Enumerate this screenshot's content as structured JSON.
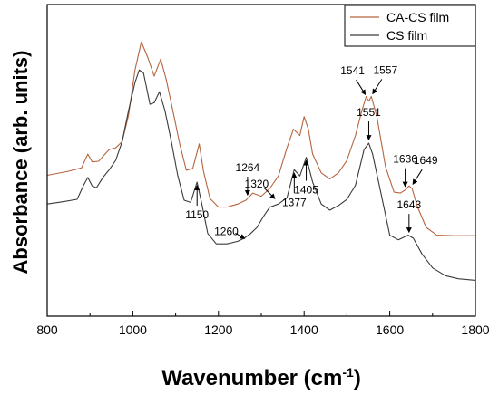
{
  "chart_data": {
    "type": "line",
    "title": "",
    "xlabel": "Wavenumber (cm",
    "xlabel_sup": "-1",
    "xlabel_close": ")",
    "ylabel": "Absorbance (arb. units)",
    "xlim": [
      800,
      1800
    ],
    "ylim": [
      0,
      1
    ],
    "xticks": [
      800,
      1000,
      1200,
      1400,
      1600,
      1800
    ],
    "x_tick_labels": [
      "800",
      "1000",
      "1200",
      "1400",
      "1600",
      "1800"
    ],
    "y_tick_labels_shown": false,
    "grid": false,
    "legend_position": "top-right",
    "series": [
      {
        "name": "CA-CS film",
        "color": "#b5653e",
        "points": [
          [
            800,
            0.452
          ],
          [
            850,
            0.465
          ],
          [
            880,
            0.476
          ],
          [
            895,
            0.52
          ],
          [
            905,
            0.495
          ],
          [
            920,
            0.497
          ],
          [
            945,
            0.535
          ],
          [
            960,
            0.54
          ],
          [
            975,
            0.56
          ],
          [
            990,
            0.645
          ],
          [
            1005,
            0.79
          ],
          [
            1020,
            0.88
          ],
          [
            1035,
            0.83
          ],
          [
            1050,
            0.77
          ],
          [
            1065,
            0.825
          ],
          [
            1078,
            0.76
          ],
          [
            1095,
            0.65
          ],
          [
            1110,
            0.55
          ],
          [
            1125,
            0.468
          ],
          [
            1140,
            0.474
          ],
          [
            1155,
            0.553
          ],
          [
            1165,
            0.465
          ],
          [
            1180,
            0.378
          ],
          [
            1200,
            0.35
          ],
          [
            1220,
            0.35
          ],
          [
            1245,
            0.36
          ],
          [
            1264,
            0.372
          ],
          [
            1280,
            0.395
          ],
          [
            1300,
            0.385
          ],
          [
            1320,
            0.41
          ],
          [
            1340,
            0.45
          ],
          [
            1360,
            0.54
          ],
          [
            1375,
            0.6
          ],
          [
            1390,
            0.58
          ],
          [
            1400,
            0.64
          ],
          [
            1410,
            0.6
          ],
          [
            1420,
            0.52
          ],
          [
            1440,
            0.46
          ],
          [
            1460,
            0.44
          ],
          [
            1480,
            0.46
          ],
          [
            1500,
            0.5
          ],
          [
            1520,
            0.58
          ],
          [
            1535,
            0.66
          ],
          [
            1545,
            0.705
          ],
          [
            1551,
            0.69
          ],
          [
            1557,
            0.705
          ],
          [
            1570,
            0.64
          ],
          [
            1590,
            0.48
          ],
          [
            1610,
            0.398
          ],
          [
            1625,
            0.395
          ],
          [
            1636,
            0.405
          ],
          [
            1645,
            0.418
          ],
          [
            1652,
            0.41
          ],
          [
            1665,
            0.35
          ],
          [
            1685,
            0.285
          ],
          [
            1710,
            0.26
          ],
          [
            1750,
            0.258
          ],
          [
            1800,
            0.258
          ]
        ]
      },
      {
        "name": "CS film",
        "color": "#3a3a3a",
        "points": [
          [
            800,
            0.36
          ],
          [
            840,
            0.368
          ],
          [
            870,
            0.375
          ],
          [
            885,
            0.42
          ],
          [
            895,
            0.445
          ],
          [
            905,
            0.418
          ],
          [
            915,
            0.412
          ],
          [
            930,
            0.445
          ],
          [
            945,
            0.47
          ],
          [
            960,
            0.5
          ],
          [
            975,
            0.56
          ],
          [
            990,
            0.66
          ],
          [
            1005,
            0.75
          ],
          [
            1015,
            0.79
          ],
          [
            1025,
            0.78
          ],
          [
            1040,
            0.68
          ],
          [
            1050,
            0.685
          ],
          [
            1062,
            0.72
          ],
          [
            1075,
            0.66
          ],
          [
            1090,
            0.56
          ],
          [
            1105,
            0.45
          ],
          [
            1120,
            0.372
          ],
          [
            1135,
            0.365
          ],
          [
            1150,
            0.43
          ],
          [
            1160,
            0.368
          ],
          [
            1175,
            0.265
          ],
          [
            1195,
            0.232
          ],
          [
            1220,
            0.232
          ],
          [
            1245,
            0.24
          ],
          [
            1260,
            0.25
          ],
          [
            1275,
            0.265
          ],
          [
            1290,
            0.285
          ],
          [
            1305,
            0.32
          ],
          [
            1320,
            0.35
          ],
          [
            1340,
            0.36
          ],
          [
            1360,
            0.38
          ],
          [
            1377,
            0.47
          ],
          [
            1390,
            0.45
          ],
          [
            1405,
            0.51
          ],
          [
            1420,
            0.43
          ],
          [
            1440,
            0.36
          ],
          [
            1460,
            0.34
          ],
          [
            1480,
            0.355
          ],
          [
            1500,
            0.375
          ],
          [
            1520,
            0.42
          ],
          [
            1540,
            0.535
          ],
          [
            1551,
            0.555
          ],
          [
            1560,
            0.52
          ],
          [
            1580,
            0.39
          ],
          [
            1600,
            0.26
          ],
          [
            1620,
            0.245
          ],
          [
            1643,
            0.26
          ],
          [
            1655,
            0.25
          ],
          [
            1675,
            0.2
          ],
          [
            1700,
            0.155
          ],
          [
            1730,
            0.13
          ],
          [
            1760,
            0.12
          ],
          [
            1800,
            0.115
          ]
        ]
      }
    ],
    "annotations": [
      {
        "label": "1150",
        "series": 1,
        "target_x": 1150,
        "direction": "up"
      },
      {
        "label": "1260",
        "series": 1,
        "target_x": 1265,
        "direction": "diag-left"
      },
      {
        "label": "1264",
        "series": 0,
        "target_x": 1268,
        "direction": "down"
      },
      {
        "label": "1320",
        "series": 1,
        "target_x": 1340,
        "direction": "diag-right"
      },
      {
        "label": "1377",
        "series": 1,
        "target_x": 1377,
        "direction": "up"
      },
      {
        "label": "1405",
        "series": 1,
        "target_x": 1405,
        "direction": "up"
      },
      {
        "label": "1541",
        "series": 0,
        "target_x": 1547,
        "direction": "diag-left"
      },
      {
        "label": "1557",
        "series": 0,
        "target_x": 1556,
        "direction": "diag-right"
      },
      {
        "label": "1551",
        "series": 1,
        "target_x": 1551,
        "direction": "down"
      },
      {
        "label": "1636",
        "series": 0,
        "target_x": 1636,
        "direction": "down"
      },
      {
        "label": "1649",
        "series": 0,
        "target_x": 1650,
        "direction": "diag-right"
      },
      {
        "label": "1643",
        "series": 1,
        "target_x": 1645,
        "direction": "down"
      }
    ]
  }
}
